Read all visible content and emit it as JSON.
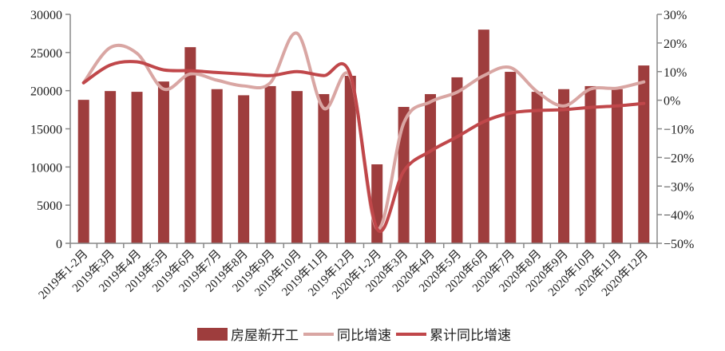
{
  "chart_data": {
    "type": "bar+line",
    "categories": [
      "2019年1-2月",
      "2019年3月",
      "2019年4月",
      "2019年5月",
      "2019年6月",
      "2019年7月",
      "2019年8月",
      "2019年9月",
      "2019年10月",
      "2019年11月",
      "2019年12月",
      "2020年1-2月",
      "2020年3月",
      "2020年4月",
      "2020年5月",
      "2020年6月",
      "2020年7月",
      "2020年8月",
      "2020年9月",
      "2020年10月",
      "2020年11月",
      "2020年12月"
    ],
    "y_left": {
      "min": 0,
      "max": 30000,
      "ticks": [
        0,
        5000,
        10000,
        15000,
        20000,
        25000,
        30000
      ]
    },
    "y_right": {
      "min": -50,
      "max": 30,
      "ticks": [
        "-50%",
        "-40%",
        "-30%",
        "-20%",
        "-10%",
        "0%",
        "10%",
        "20%",
        "30%"
      ]
    },
    "series": [
      {
        "name": "房屋新开工",
        "type": "bar",
        "axis": "left",
        "color": "#9e3d3d",
        "values": [
          18800,
          19950,
          19850,
          21200,
          25700,
          20200,
          19400,
          20600,
          19950,
          19550,
          21950,
          10350,
          17870,
          19550,
          21750,
          28000,
          22470,
          19850,
          20200,
          20600,
          20200,
          23300
        ]
      },
      {
        "name": "同比增速",
        "type": "line",
        "axis": "right",
        "unit": "%",
        "color": "#d9a6a3",
        "values": [
          6.1,
          18.4,
          16.4,
          3.9,
          9.2,
          7.0,
          5.0,
          6.1,
          23.4,
          -2.8,
          8.1,
          -44.9,
          -8.0,
          -0.6,
          2.8,
          8.6,
          11.4,
          3.0,
          -2.0,
          3.9,
          4.2,
          6.4
        ]
      },
      {
        "name": "累计同比增速",
        "type": "line",
        "axis": "right",
        "unit": "%",
        "color": "#c0474a",
        "values": [
          6.1,
          12.3,
          13.4,
          10.6,
          10.3,
          9.7,
          9.1,
          8.6,
          10.0,
          8.6,
          8.9,
          -44.9,
          -24.8,
          -17.8,
          -12.8,
          -7.5,
          -4.5,
          -3.6,
          -3.3,
          -2.5,
          -2.0,
          -1.1
        ]
      }
    ],
    "legend": "bottom",
    "grid": false
  }
}
